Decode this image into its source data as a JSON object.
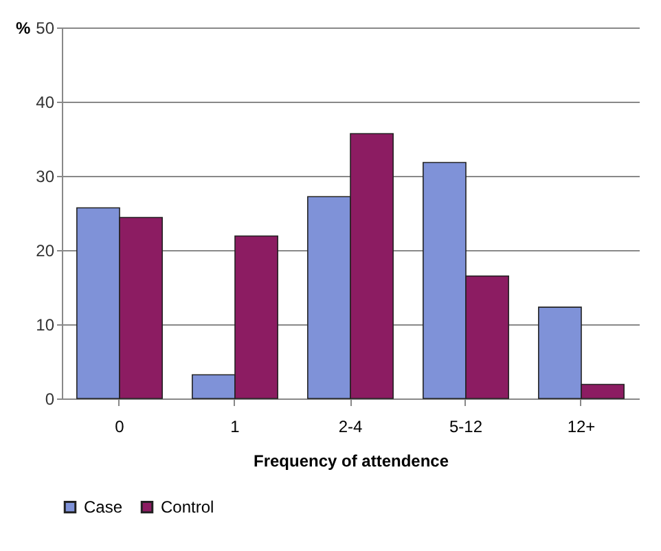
{
  "chart_data": {
    "type": "bar",
    "xlabel": "Frequency of attendence",
    "ylabel": "%",
    "categories": [
      "0",
      "1",
      "2-4",
      "5-12",
      "12+"
    ],
    "series": [
      {
        "name": "Case",
        "color": "#7f92d8",
        "values": [
          25.7,
          3.2,
          27.2,
          31.8,
          12.3
        ]
      },
      {
        "name": "Control",
        "color": "#8c1c62",
        "values": [
          24.4,
          21.9,
          35.7,
          16.5,
          1.9
        ]
      }
    ],
    "ylim": [
      0,
      50
    ],
    "yticks": [
      0,
      10,
      20,
      30,
      40,
      50
    ],
    "grid": "y",
    "legend": "bottom"
  }
}
